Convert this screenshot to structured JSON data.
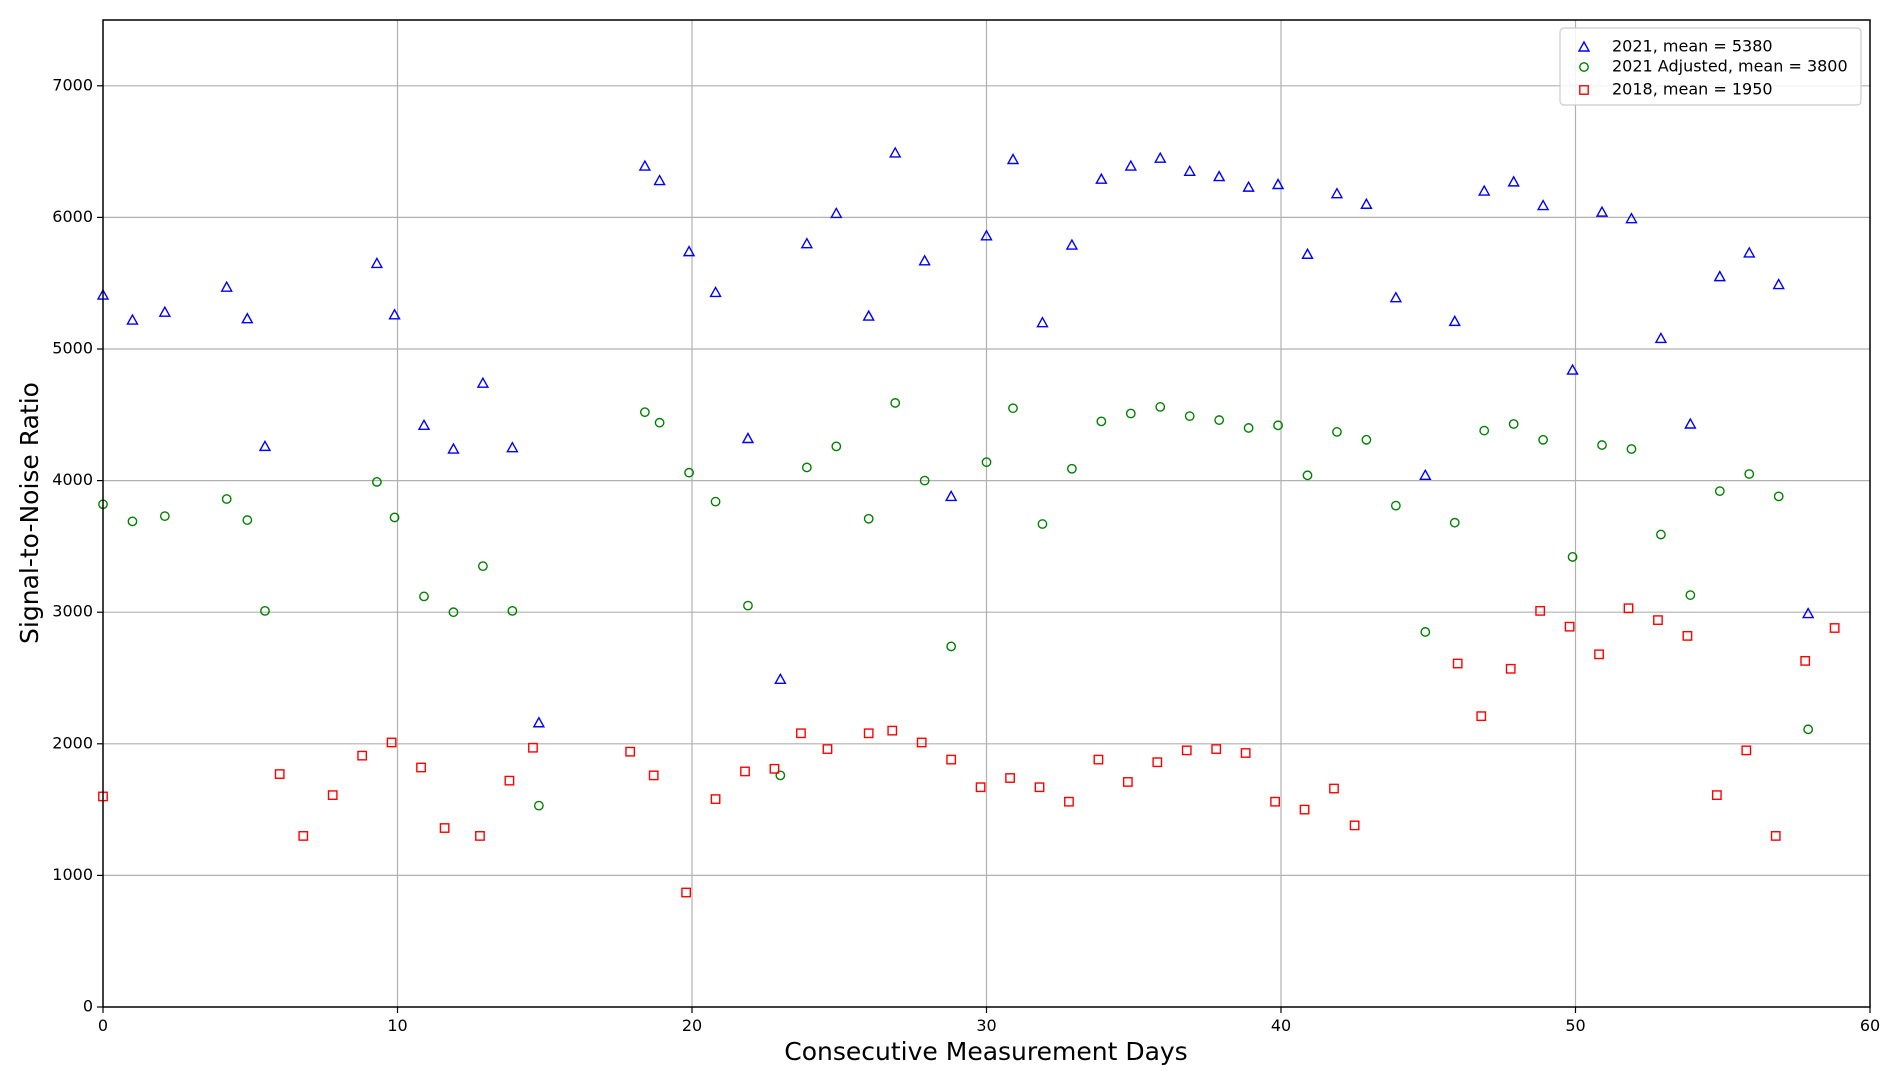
{
  "chart_data": {
    "type": "scatter",
    "xlabel": "Consecutive Measurement Days",
    "ylabel": "Signal-to-Noise Ratio",
    "xlim": [
      0,
      60
    ],
    "ylim": [
      0,
      7500
    ],
    "xticks": [
      0,
      10,
      20,
      30,
      40,
      50,
      60
    ],
    "yticks": [
      0,
      1000,
      2000,
      3000,
      4000,
      5000,
      6000,
      7000
    ],
    "grid": "major, both axes",
    "legend_position": "top-right",
    "series": [
      {
        "name": "2021, mean = 5380",
        "marker": "triangle",
        "color": "#0000ff",
        "points": [
          [
            0,
            5410
          ],
          [
            1,
            5220
          ],
          [
            2.1,
            5280
          ],
          [
            4.2,
            5470
          ],
          [
            4.9,
            5230
          ],
          [
            5.5,
            4260
          ],
          [
            9.3,
            5650
          ],
          [
            9.9,
            5260
          ],
          [
            10.9,
            4420
          ],
          [
            11.9,
            4240
          ],
          [
            12.9,
            4740
          ],
          [
            13.9,
            4250
          ],
          [
            14.8,
            2160
          ],
          [
            18.4,
            6390
          ],
          [
            18.9,
            6280
          ],
          [
            19.9,
            5740
          ],
          [
            20.8,
            5430
          ],
          [
            21.9,
            4320
          ],
          [
            23,
            2490
          ],
          [
            23.9,
            5800
          ],
          [
            24.9,
            6030
          ],
          [
            26.0,
            5250
          ],
          [
            26.9,
            6490
          ],
          [
            27.9,
            5670
          ],
          [
            28.8,
            3880
          ],
          [
            30,
            5860
          ],
          [
            30.9,
            6440
          ],
          [
            31.9,
            5200
          ],
          [
            32.9,
            5790
          ],
          [
            33.9,
            6290
          ],
          [
            34.9,
            6390
          ],
          [
            35.9,
            6450
          ],
          [
            36.9,
            6350
          ],
          [
            37.9,
            6310
          ],
          [
            38.9,
            6230
          ],
          [
            39.9,
            6250
          ],
          [
            40.9,
            5720
          ],
          [
            41.9,
            6180
          ],
          [
            42.9,
            6100
          ],
          [
            43.9,
            5390
          ],
          [
            44.9,
            4040
          ],
          [
            45.9,
            5210
          ],
          [
            46.9,
            6200
          ],
          [
            47.9,
            6270
          ],
          [
            48.9,
            6090
          ],
          [
            49.9,
            4840
          ],
          [
            50.9,
            6040
          ],
          [
            51.9,
            5990
          ],
          [
            52.9,
            5080
          ],
          [
            53.9,
            4430
          ],
          [
            54.9,
            5550
          ],
          [
            55.9,
            5730
          ],
          [
            56.9,
            5490
          ],
          [
            57.9,
            2990
          ]
        ]
      },
      {
        "name": "2021 Adjusted, mean = 3800",
        "marker": "circle",
        "color": "#008000",
        "points": [
          [
            0,
            3820
          ],
          [
            1,
            3690
          ],
          [
            2.1,
            3730
          ],
          [
            4.2,
            3860
          ],
          [
            4.9,
            3700
          ],
          [
            5.5,
            3010
          ],
          [
            9.3,
            3990
          ],
          [
            9.9,
            3720
          ],
          [
            10.9,
            3120
          ],
          [
            11.9,
            3000
          ],
          [
            12.9,
            3350
          ],
          [
            13.9,
            3010
          ],
          [
            14.8,
            1530
          ],
          [
            18.4,
            4520
          ],
          [
            18.9,
            4440
          ],
          [
            19.9,
            4060
          ],
          [
            20.8,
            3840
          ],
          [
            21.9,
            3050
          ],
          [
            23,
            1760
          ],
          [
            23.9,
            4100
          ],
          [
            24.9,
            4260
          ],
          [
            26.0,
            3710
          ],
          [
            26.9,
            4590
          ],
          [
            27.9,
            4000
          ],
          [
            28.8,
            2740
          ],
          [
            30,
            4140
          ],
          [
            30.9,
            4550
          ],
          [
            31.9,
            3670
          ],
          [
            32.9,
            4090
          ],
          [
            33.9,
            4450
          ],
          [
            34.9,
            4510
          ],
          [
            35.9,
            4560
          ],
          [
            36.9,
            4490
          ],
          [
            37.9,
            4460
          ],
          [
            38.9,
            4400
          ],
          [
            39.9,
            4420
          ],
          [
            40.9,
            4040
          ],
          [
            41.9,
            4370
          ],
          [
            42.9,
            4310
          ],
          [
            43.9,
            3810
          ],
          [
            44.9,
            2850
          ],
          [
            45.9,
            3680
          ],
          [
            46.9,
            4380
          ],
          [
            47.9,
            4430
          ],
          [
            48.9,
            4310
          ],
          [
            49.9,
            3420
          ],
          [
            50.9,
            4270
          ],
          [
            51.9,
            4240
          ],
          [
            52.9,
            3590
          ],
          [
            53.9,
            3130
          ],
          [
            54.9,
            3920
          ],
          [
            55.9,
            4050
          ],
          [
            56.9,
            3880
          ],
          [
            57.9,
            2110
          ]
        ]
      },
      {
        "name": "2018, mean = 1950",
        "marker": "square",
        "color": "#ff0000",
        "points": [
          [
            0,
            1600
          ],
          [
            6,
            1770
          ],
          [
            6.8,
            1300
          ],
          [
            7.8,
            1610
          ],
          [
            8.8,
            1910
          ],
          [
            9.8,
            2010
          ],
          [
            10.8,
            1820
          ],
          [
            11.6,
            1360
          ],
          [
            12.8,
            1300
          ],
          [
            13.8,
            1720
          ],
          [
            14.6,
            1970
          ],
          [
            17.9,
            1940
          ],
          [
            18.7,
            1760
          ],
          [
            19.8,
            870
          ],
          [
            20.8,
            1580
          ],
          [
            21.8,
            1790
          ],
          [
            22.8,
            1810
          ],
          [
            23.7,
            2080
          ],
          [
            24.6,
            1960
          ],
          [
            26.0,
            2080
          ],
          [
            26.8,
            2100
          ],
          [
            27.8,
            2010
          ],
          [
            28.8,
            1880
          ],
          [
            29.8,
            1670
          ],
          [
            30.8,
            1740
          ],
          [
            31.8,
            1670
          ],
          [
            32.8,
            1560
          ],
          [
            33.8,
            1880
          ],
          [
            34.8,
            1710
          ],
          [
            35.8,
            1860
          ],
          [
            36.8,
            1950
          ],
          [
            37.8,
            1960
          ],
          [
            38.8,
            1930
          ],
          [
            39.8,
            1560
          ],
          [
            40.8,
            1500
          ],
          [
            41.8,
            1660
          ],
          [
            42.5,
            1380
          ],
          [
            46,
            2610
          ],
          [
            46.8,
            2210
          ],
          [
            47.8,
            2570
          ],
          [
            48.8,
            3010
          ],
          [
            49.8,
            2890
          ],
          [
            50.8,
            2680
          ],
          [
            51.8,
            3030
          ],
          [
            52.8,
            2940
          ],
          [
            53.8,
            2820
          ],
          [
            54.8,
            1610
          ],
          [
            55.8,
            1950
          ],
          [
            56.8,
            1300
          ],
          [
            57.8,
            2630
          ],
          [
            58.8,
            2880
          ]
        ]
      }
    ]
  }
}
